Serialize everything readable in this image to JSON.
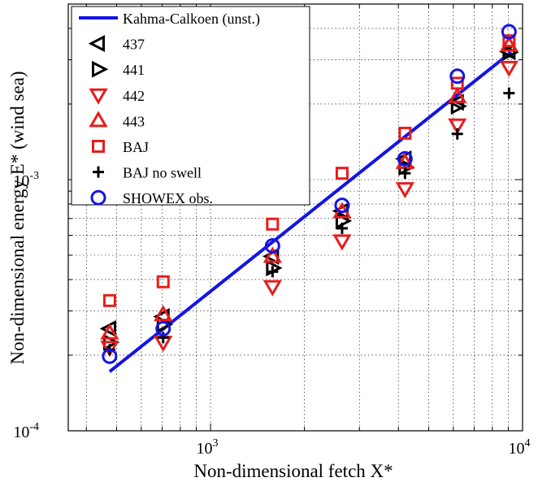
{
  "chart_data": {
    "type": "scatter",
    "title": "",
    "xlabel": "Non-dimensional fetch X*",
    "ylabel": "Non-dimensional energy E* (wind sea)",
    "xscale": "log",
    "yscale": "log",
    "xlim": [
      350,
      10000
    ],
    "ylim": [
      0.0001,
      0.005
    ],
    "xticks": [
      {
        "value": 1000,
        "base": "10",
        "exp": "3"
      },
      {
        "value": 10000,
        "base": "10",
        "exp": "4"
      }
    ],
    "yticks": [
      {
        "value": 0.0001,
        "base": "10",
        "exp": "-4"
      },
      {
        "value": 0.001,
        "base": "10",
        "exp": "-3"
      }
    ],
    "grid": true,
    "legend_position": "top-left",
    "colors": {
      "blue": "#1414e6",
      "red": "#e81c1c",
      "black": "#000000"
    },
    "series": [
      {
        "name": "Kahma-Calkoen (unst.)",
        "kind": "line",
        "marker": "line",
        "color": "#1414e6",
        "x": [
          475,
          9200
        ],
        "y": [
          0.000172,
          0.00322
        ]
      },
      {
        "name": "437",
        "kind": "points",
        "marker": "triangle-left",
        "color": "#000000",
        "x": [
          475,
          705,
          1580,
          2640,
          4200,
          6180,
          9050
        ],
        "y": [
          0.000255,
          0.000285,
          0.000495,
          0.00075,
          0.00121,
          0.00203,
          0.00323
        ]
      },
      {
        "name": "441",
        "kind": "points",
        "marker": "triangle-right",
        "color": "#000000",
        "x": [
          475,
          705,
          1580,
          2640,
          4200,
          6180,
          9050
        ],
        "y": [
          0.000225,
          0.000265,
          0.000445,
          0.000685,
          0.00112,
          0.00196,
          0.00321
        ]
      },
      {
        "name": "442",
        "kind": "points",
        "marker": "triangle-down",
        "color": "#e81c1c",
        "x": [
          475,
          705,
          1580,
          2640,
          4200,
          6180,
          9050
        ],
        "y": [
          0.000215,
          0.000225,
          0.000375,
          0.00057,
          0.00092,
          0.00165,
          0.0028
        ]
      },
      {
        "name": "443",
        "kind": "points",
        "marker": "triangle-up",
        "color": "#e81c1c",
        "x": [
          475,
          705,
          1580,
          2640,
          4200,
          6180,
          9050
        ],
        "y": [
          0.000245,
          0.00029,
          0.000495,
          0.000745,
          0.00117,
          0.00214,
          0.00343
        ]
      },
      {
        "name": "BAJ",
        "kind": "points",
        "marker": "square",
        "color": "#e81c1c",
        "x": [
          475,
          705,
          1580,
          2640,
          4200,
          6180,
          9050
        ],
        "y": [
          0.00033,
          0.000392,
          0.000665,
          0.00106,
          0.00153,
          0.00242,
          0.00357
        ]
      },
      {
        "name": "BAJ no swell",
        "kind": "points",
        "marker": "plus",
        "color": "#000000",
        "x": [
          475,
          705,
          1580,
          2640,
          4200,
          6180,
          9050
        ],
        "y": [
          0.00021,
          0.000235,
          0.00043,
          0.00064,
          0.00106,
          0.00152,
          0.00221
        ]
      },
      {
        "name": "SHOWEX obs.",
        "kind": "points",
        "marker": "circle",
        "color": "#1414e6",
        "x": [
          475,
          705,
          1580,
          2640,
          4200,
          6180,
          9050
        ],
        "y": [
          0.000198,
          0.000255,
          0.000545,
          0.00079,
          0.00121,
          0.00258,
          0.00388
        ]
      }
    ]
  }
}
